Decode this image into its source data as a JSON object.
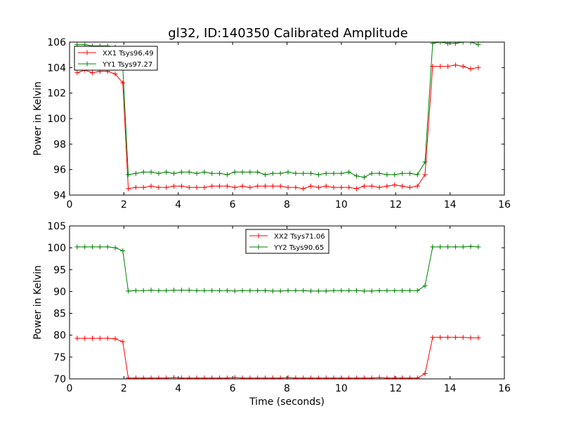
{
  "figure": {
    "title": "gl32, ID:140350 Calibrated Amplitude"
  },
  "chart_data": [
    {
      "type": "line",
      "title": "gl32, ID:140350 Calibrated Amplitude",
      "xlabel": "",
      "ylabel": "Power in Kelvin",
      "xlim": [
        0,
        16
      ],
      "ylim": [
        94,
        106
      ],
      "xticks": [
        0,
        2,
        4,
        6,
        8,
        10,
        12,
        14,
        16
      ],
      "yticks": [
        94,
        96,
        98,
        100,
        102,
        104,
        106
      ],
      "grid": false,
      "legend_position": "top-left",
      "x": [
        0.28,
        0.56,
        0.84,
        1.12,
        1.4,
        1.68,
        1.96,
        2.16,
        2.44,
        2.72,
        3.0,
        3.28,
        3.56,
        3.84,
        4.12,
        4.4,
        4.68,
        4.96,
        5.24,
        5.52,
        5.8,
        6.08,
        6.36,
        6.64,
        6.92,
        7.2,
        7.48,
        7.76,
        8.04,
        8.32,
        8.6,
        8.88,
        9.16,
        9.44,
        9.72,
        10.0,
        10.28,
        10.56,
        10.84,
        11.12,
        11.4,
        11.68,
        11.96,
        12.24,
        12.52,
        12.8,
        13.08,
        13.36,
        13.64,
        13.92,
        14.2,
        14.48,
        14.76,
        15.04
      ],
      "series": [
        {
          "name": "XX1 Tsys96.49",
          "color": "#ff0000",
          "values": [
            103.6,
            103.8,
            103.6,
            103.7,
            103.7,
            103.5,
            102.8,
            94.5,
            94.6,
            94.6,
            94.7,
            94.6,
            94.6,
            94.7,
            94.7,
            94.6,
            94.6,
            94.6,
            94.7,
            94.7,
            94.7,
            94.6,
            94.7,
            94.6,
            94.7,
            94.7,
            94.7,
            94.7,
            94.6,
            94.6,
            94.5,
            94.7,
            94.6,
            94.7,
            94.6,
            94.6,
            94.6,
            94.5,
            94.7,
            94.7,
            94.6,
            94.7,
            94.8,
            94.7,
            94.6,
            94.7,
            95.6,
            104.1,
            104.1,
            104.1,
            104.2,
            104.1,
            103.9,
            104.0
          ]
        },
        {
          "name": "YY1 Tsys97.27",
          "color": "#008000",
          "values": [
            105.8,
            105.8,
            105.7,
            105.7,
            105.7,
            105.6,
            104.0,
            95.6,
            95.7,
            95.8,
            95.8,
            95.7,
            95.8,
            95.7,
            95.8,
            95.8,
            95.7,
            95.8,
            95.7,
            95.7,
            95.6,
            95.8,
            95.8,
            95.8,
            95.8,
            95.6,
            95.7,
            95.7,
            95.8,
            95.7,
            95.7,
            95.7,
            95.6,
            95.7,
            95.7,
            95.7,
            95.8,
            95.5,
            95.4,
            95.7,
            95.7,
            95.6,
            95.6,
            95.7,
            95.7,
            95.6,
            96.6,
            105.9,
            106.0,
            105.9,
            105.9,
            106.0,
            106.0,
            105.8
          ]
        }
      ]
    },
    {
      "type": "line",
      "title": "",
      "xlabel": "Time (seconds)",
      "ylabel": "Power in Kelvin",
      "xlim": [
        0,
        16
      ],
      "ylim": [
        70,
        105
      ],
      "xticks": [
        0,
        2,
        4,
        6,
        8,
        10,
        12,
        14,
        16
      ],
      "yticks": [
        70,
        75,
        80,
        85,
        90,
        95,
        100,
        105
      ],
      "grid": false,
      "legend_position": "top-center",
      "x": [
        0.28,
        0.56,
        0.84,
        1.12,
        1.4,
        1.68,
        1.96,
        2.16,
        2.44,
        2.72,
        3.0,
        3.28,
        3.56,
        3.84,
        4.12,
        4.4,
        4.68,
        4.96,
        5.24,
        5.52,
        5.8,
        6.08,
        6.36,
        6.64,
        6.92,
        7.2,
        7.48,
        7.76,
        8.04,
        8.32,
        8.6,
        8.88,
        9.16,
        9.44,
        9.72,
        10.0,
        10.28,
        10.56,
        10.84,
        11.12,
        11.4,
        11.68,
        11.96,
        12.24,
        12.52,
        12.8,
        13.08,
        13.36,
        13.64,
        13.92,
        14.2,
        14.48,
        14.76,
        15.04
      ],
      "series": [
        {
          "name": "XX2 Tsys71.06",
          "color": "#ff0000",
          "values": [
            79.3,
            79.3,
            79.3,
            79.3,
            79.3,
            79.2,
            78.5,
            70.2,
            70.2,
            70.2,
            70.2,
            70.2,
            70.2,
            70.3,
            70.2,
            70.2,
            70.2,
            70.2,
            70.2,
            70.2,
            70.2,
            70.3,
            70.2,
            70.2,
            70.2,
            70.2,
            70.2,
            70.2,
            70.3,
            70.2,
            70.2,
            70.2,
            70.2,
            70.2,
            70.2,
            70.2,
            70.2,
            70.2,
            70.2,
            70.2,
            70.3,
            70.2,
            70.2,
            70.2,
            70.2,
            70.2,
            71.2,
            79.5,
            79.5,
            79.5,
            79.5,
            79.5,
            79.4,
            79.4
          ]
        },
        {
          "name": "YY2 Tsys90.65",
          "color": "#008000",
          "values": [
            100.2,
            100.2,
            100.2,
            100.2,
            100.2,
            100.0,
            99.3,
            90.1,
            90.2,
            90.2,
            90.3,
            90.2,
            90.2,
            90.3,
            90.3,
            90.3,
            90.2,
            90.2,
            90.2,
            90.2,
            90.2,
            90.1,
            90.2,
            90.2,
            90.2,
            90.2,
            90.1,
            90.1,
            90.2,
            90.2,
            90.2,
            90.1,
            90.1,
            90.1,
            90.2,
            90.2,
            90.2,
            90.2,
            90.1,
            90.1,
            90.2,
            90.2,
            90.2,
            90.2,
            90.2,
            90.2,
            91.3,
            100.2,
            100.2,
            100.2,
            100.2,
            100.2,
            100.3,
            100.2
          ]
        }
      ]
    }
  ]
}
